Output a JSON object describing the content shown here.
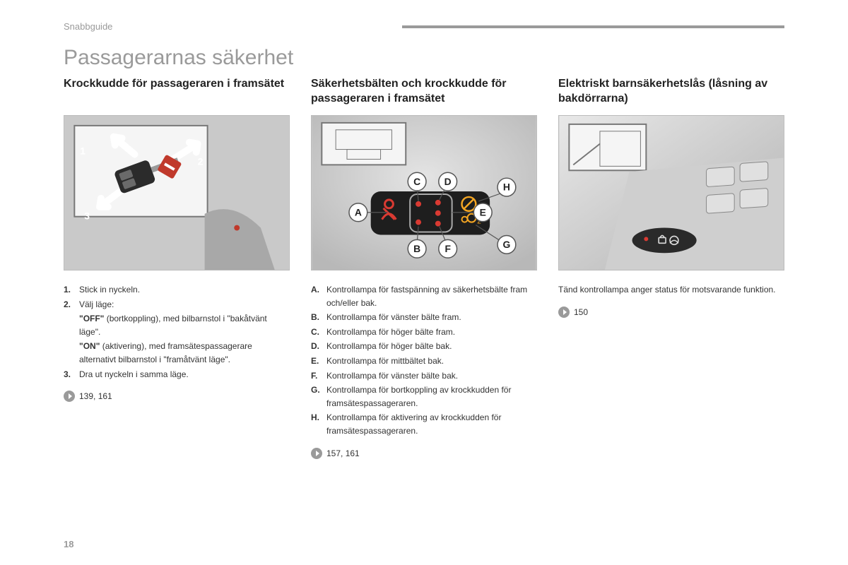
{
  "header": {
    "section_name": "Snabbguide",
    "bar_color": "#9a9a9a"
  },
  "main_title": "Passagerarnas säkerhet",
  "page_number": "18",
  "columns": [
    {
      "title": "Krockkudde för passageraren i framsätet",
      "instructions": [
        {
          "marker": "1.",
          "text": "Stick in nyckeln."
        },
        {
          "marker": "2.",
          "text": "Välj läge:"
        },
        {
          "marker": "",
          "text": "<b>\"OFF\"</b> (bortkoppling), med bilbarnstol i \"bakåtvänt läge\"."
        },
        {
          "marker": "",
          "text": "<b>\"ON\"</b> (aktivering), med framsätespassagerare alternativt bilbarnstol i \"framåtvänt läge\"."
        },
        {
          "marker": "3.",
          "text": "Dra ut nyckeln i samma läge."
        }
      ],
      "page_ref": "139, 161",
      "illustration": {
        "numbers": [
          "1",
          "2",
          "3"
        ]
      }
    },
    {
      "title": "Säkerhetsbälten och krockkudde för passageraren i framsätet",
      "instructions": [
        {
          "marker": "A.",
          "text": "Kontrollampa för fastspänning av säkerhetsbälte fram och/eller bak."
        },
        {
          "marker": "B.",
          "text": "Kontrollampa för vänster bälte fram."
        },
        {
          "marker": "C.",
          "text": "Kontrollampa för höger bälte fram."
        },
        {
          "marker": "D.",
          "text": "Kontrollampa för höger bälte bak."
        },
        {
          "marker": "E.",
          "text": "Kontrollampa för mittbältet bak."
        },
        {
          "marker": "F.",
          "text": "Kontrollampa för vänster bälte bak."
        },
        {
          "marker": "G.",
          "text": "Kontrollampa för bortkoppling av krockkudden för framsätespassageraren."
        },
        {
          "marker": "H.",
          "text": "Kontrollampa för aktivering av krockkudden för framsätespassageraren."
        }
      ],
      "page_ref": "157, 161",
      "illustration": {
        "callouts": [
          "A",
          "B",
          "C",
          "D",
          "E",
          "F",
          "G",
          "H"
        ],
        "seatbelt_color": "#d93a32",
        "airbag_color": "#f5a623",
        "dot_color": "#d93a32"
      }
    },
    {
      "title": "Elektriskt barnsäkerhetslås (låsning av bakdörrarna)",
      "body_text": "Tänd kontrollampa anger status för motsvarande funktion.",
      "page_ref": "150",
      "illustration": {
        "led_color": "#d93a32"
      }
    }
  ]
}
